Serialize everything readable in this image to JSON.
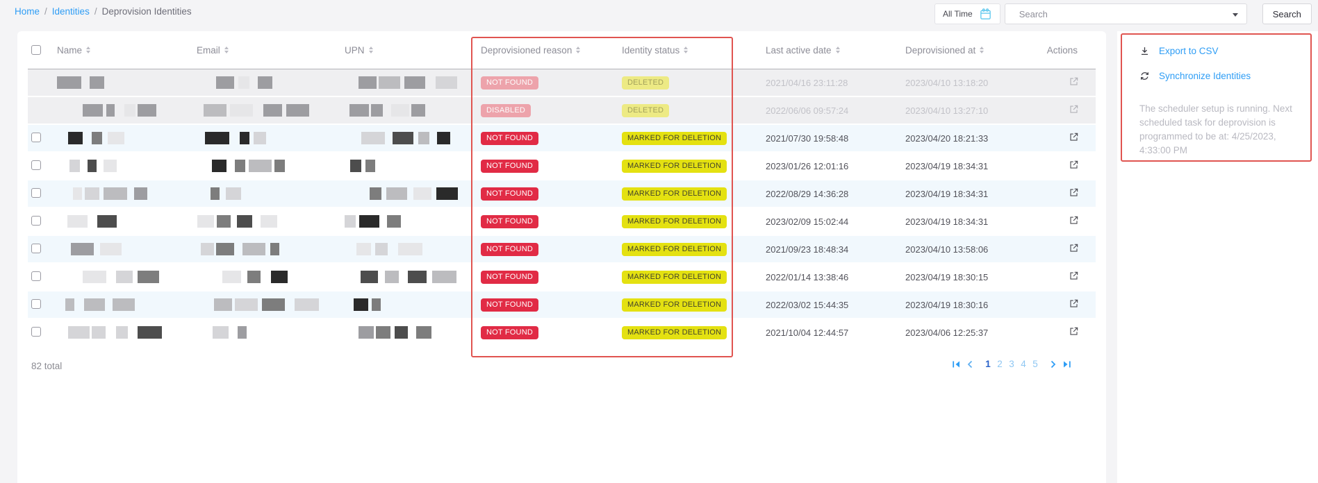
{
  "breadcrumb": {
    "home_label": "Home",
    "identities_label": "Identities",
    "current": "Deprovision Identities",
    "separator": "/"
  },
  "topbar": {
    "time_filter": "All Time",
    "search_placeholder": "Search",
    "search_button": "Search"
  },
  "table": {
    "columns": {
      "name": "Name",
      "email": "Email",
      "upn": "UPN",
      "reason": "Deprovisioned reason",
      "status": "Identity status",
      "last_active": "Last active date",
      "deprovisioned_at": "Deprovisioned at",
      "actions": "Actions"
    },
    "rows": [
      {
        "reason": "NOT FOUND",
        "status": "DELETED",
        "last_active": "2021/04/16 23:11:28",
        "deprovisioned_at": "2023/04/10 13:18:20",
        "disabled": true,
        "checkbox": false
      },
      {
        "reason": "DISABLED",
        "status": "DELETED",
        "last_active": "2022/06/06 09:57:24",
        "deprovisioned_at": "2023/04/10 13:27:10",
        "disabled": true,
        "checkbox": false
      },
      {
        "reason": "NOT FOUND",
        "status": "MARKED FOR DELETION",
        "last_active": "2021/07/30 19:58:48",
        "deprovisioned_at": "2023/04/20 18:21:33",
        "disabled": false,
        "checkbox": true
      },
      {
        "reason": "NOT FOUND",
        "status": "MARKED FOR DELETION",
        "last_active": "2023/01/26 12:01:16",
        "deprovisioned_at": "2023/04/19 18:34:31",
        "disabled": false,
        "checkbox": true
      },
      {
        "reason": "NOT FOUND",
        "status": "MARKED FOR DELETION",
        "last_active": "2022/08/29 14:36:28",
        "deprovisioned_at": "2023/04/19 18:34:31",
        "disabled": false,
        "checkbox": true
      },
      {
        "reason": "NOT FOUND",
        "status": "MARKED FOR DELETION",
        "last_active": "2023/02/09 15:02:44",
        "deprovisioned_at": "2023/04/19 18:34:31",
        "disabled": false,
        "checkbox": true
      },
      {
        "reason": "NOT FOUND",
        "status": "MARKED FOR DELETION",
        "last_active": "2021/09/23 18:48:34",
        "deprovisioned_at": "2023/04/10 13:58:06",
        "disabled": false,
        "checkbox": true
      },
      {
        "reason": "NOT FOUND",
        "status": "MARKED FOR DELETION",
        "last_active": "2022/01/14 13:38:46",
        "deprovisioned_at": "2023/04/19 18:30:15",
        "disabled": false,
        "checkbox": true
      },
      {
        "reason": "NOT FOUND",
        "status": "MARKED FOR DELETION",
        "last_active": "2022/03/02 15:44:35",
        "deprovisioned_at": "2023/04/19 18:30:16",
        "disabled": false,
        "checkbox": true
      },
      {
        "reason": "NOT FOUND",
        "status": "MARKED FOR DELETION",
        "last_active": "2021/10/04 12:44:57",
        "deprovisioned_at": "2023/04/06 12:25:37",
        "disabled": false,
        "checkbox": true
      }
    ],
    "total_label": "82 total"
  },
  "pagination": {
    "pages": [
      "1",
      "2",
      "3",
      "4",
      "5"
    ],
    "current": "1"
  },
  "side_panel": {
    "export_label": "Export to CSV",
    "sync_label": "Synchronize Identities",
    "scheduler_note": "The scheduler setup is running. Next scheduled task for deprovision is programmed to be at: 4/25/2023, 4:33:00 PM"
  },
  "icons": {
    "calendar-icon": "calendar outline",
    "chevron-down-icon": "▼",
    "sort-icon": "⇅",
    "download-icon": "↓",
    "sync-icon": "⟳",
    "external-link-icon": "↗",
    "first-page-icon": "⏮",
    "previous-page-icon": "‹",
    "next-page-icon": "›",
    "last-page-icon": "⏭"
  },
  "colors": {
    "link-blue": "#2e9df5",
    "badge-red": "#e12b45",
    "badge-yellow": "#e4e111",
    "highlight-red": "#e05450",
    "row-blue": "#f1f8fd",
    "row-gray": "#efeff1"
  }
}
